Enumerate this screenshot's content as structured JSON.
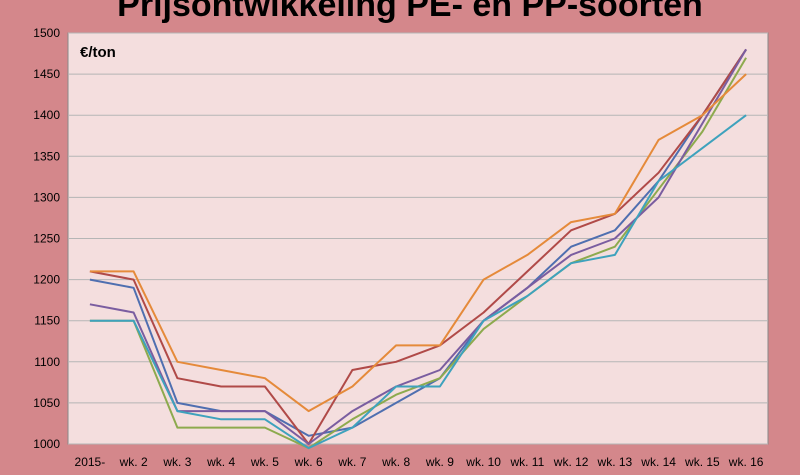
{
  "chart_data": {
    "type": "line",
    "title": "Prijsontwikkeling PE- en PP-soorten",
    "unit_label": "€/ton",
    "categories": [
      "2015-",
      "wk. 2",
      "wk. 3",
      "wk. 4",
      "wk. 5",
      "wk. 6",
      "wk. 7",
      "wk. 8",
      "wk. 9",
      "wk. 10",
      "wk. 11",
      "wk. 12",
      "wk. 13",
      "wk. 14",
      "wk. 15",
      "wk. 16"
    ],
    "ylim": [
      1000,
      1500
    ],
    "yticks": [
      1000,
      1050,
      1100,
      1150,
      1200,
      1250,
      1300,
      1350,
      1400,
      1450,
      1500
    ],
    "grid": true,
    "legend": "none",
    "series": [
      {
        "color": "#4f6fb0",
        "values": [
          1200,
          1190,
          1050,
          1040,
          1040,
          1010,
          1020,
          1050,
          1080,
          1150,
          1190,
          1240,
          1260,
          1320,
          1400,
          1480
        ]
      },
      {
        "color": "#b04a48",
        "values": [
          1210,
          1200,
          1080,
          1070,
          1070,
          1000,
          1090,
          1100,
          1120,
          1160,
          1210,
          1260,
          1280,
          1330,
          1400,
          1480
        ]
      },
      {
        "color": "#8daa4e",
        "values": [
          1150,
          1150,
          1020,
          1020,
          1020,
          995,
          1030,
          1060,
          1080,
          1140,
          1180,
          1220,
          1240,
          1310,
          1380,
          1470
        ]
      },
      {
        "color": "#7a5da0",
        "values": [
          1170,
          1160,
          1040,
          1040,
          1040,
          1000,
          1040,
          1070,
          1090,
          1150,
          1190,
          1230,
          1250,
          1300,
          1390,
          1480
        ]
      },
      {
        "color": "#3ea2bd",
        "values": [
          1150,
          1150,
          1040,
          1030,
          1030,
          995,
          1020,
          1070,
          1070,
          1150,
          1180,
          1220,
          1230,
          1320,
          1360,
          1400
        ]
      },
      {
        "color": "#e58a3a",
        "values": [
          1210,
          1210,
          1100,
          1090,
          1080,
          1040,
          1070,
          1120,
          1120,
          1200,
          1230,
          1270,
          1280,
          1370,
          1400,
          1450
        ]
      }
    ]
  },
  "colors": {
    "frame": "#d4878b",
    "plot_background": "#f4dede",
    "grid": "#b5b5b5"
  }
}
